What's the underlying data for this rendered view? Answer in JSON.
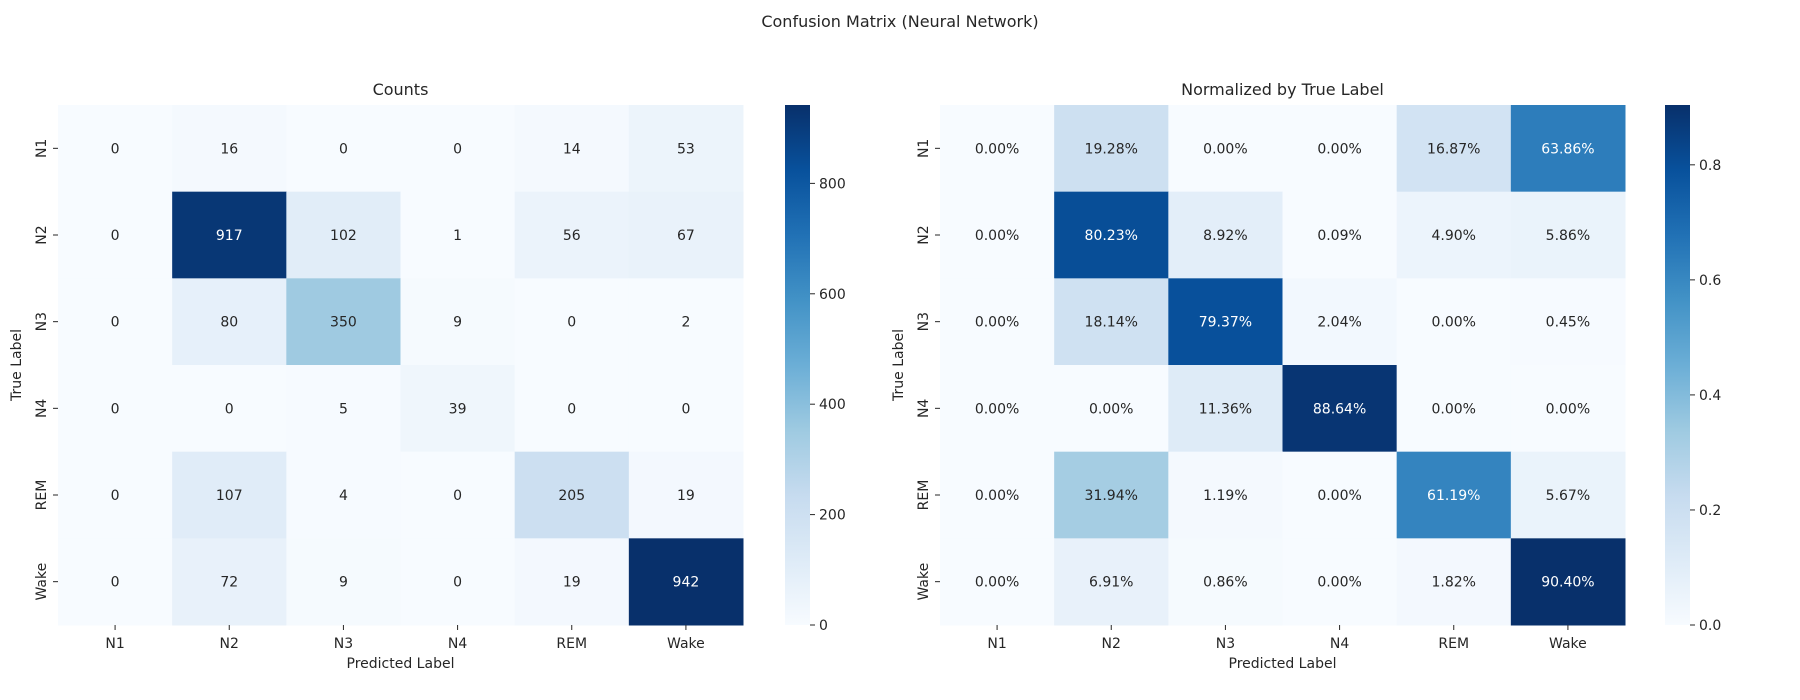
{
  "suptitle": "Confusion Matrix (Neural Network)",
  "chart_data": [
    {
      "type": "heatmap",
      "title": "Counts",
      "xlabel": "Predicted Label",
      "ylabel": "True Label",
      "x_categories": [
        "N1",
        "N2",
        "N3",
        "N4",
        "REM",
        "Wake"
      ],
      "y_categories": [
        "N1",
        "N2",
        "N3",
        "N4",
        "REM",
        "Wake"
      ],
      "values": [
        [
          0,
          16,
          0,
          0,
          14,
          53
        ],
        [
          0,
          917,
          102,
          1,
          56,
          67
        ],
        [
          0,
          80,
          350,
          9,
          0,
          2
        ],
        [
          0,
          0,
          5,
          39,
          0,
          0
        ],
        [
          0,
          107,
          4,
          0,
          205,
          19
        ],
        [
          0,
          72,
          9,
          0,
          19,
          942
        ]
      ],
      "cell_labels": [
        [
          "0",
          "16",
          "0",
          "0",
          "14",
          "53"
        ],
        [
          "0",
          "917",
          "102",
          "1",
          "56",
          "67"
        ],
        [
          "0",
          "80",
          "350",
          "9",
          "0",
          "2"
        ],
        [
          "0",
          "0",
          "5",
          "39",
          "0",
          "0"
        ],
        [
          "0",
          "107",
          "4",
          "0",
          "205",
          "19"
        ],
        [
          "0",
          "72",
          "9",
          "0",
          "19",
          "942"
        ]
      ],
      "vmin": 0,
      "vmax": 942,
      "colormap": "Blues",
      "colorbar_ticks": [
        0,
        200,
        400,
        600,
        800
      ],
      "colorbar_tick_labels": [
        "0",
        "200",
        "400",
        "600",
        "800"
      ]
    },
    {
      "type": "heatmap",
      "title": "Normalized by True Label",
      "xlabel": "Predicted Label",
      "ylabel": "True Label",
      "x_categories": [
        "N1",
        "N2",
        "N3",
        "N4",
        "REM",
        "Wake"
      ],
      "y_categories": [
        "N1",
        "N2",
        "N3",
        "N4",
        "REM",
        "Wake"
      ],
      "values": [
        [
          0.0,
          0.1928,
          0.0,
          0.0,
          0.1687,
          0.6386
        ],
        [
          0.0,
          0.8023,
          0.0892,
          0.0009,
          0.049,
          0.0586
        ],
        [
          0.0,
          0.1814,
          0.7937,
          0.0204,
          0.0,
          0.0045
        ],
        [
          0.0,
          0.0,
          0.1136,
          0.8864,
          0.0,
          0.0
        ],
        [
          0.0,
          0.3194,
          0.0119,
          0.0,
          0.6119,
          0.0567
        ],
        [
          0.0,
          0.0691,
          0.0086,
          0.0,
          0.0182,
          0.904
        ]
      ],
      "cell_labels": [
        [
          "0.00%",
          "19.28%",
          "0.00%",
          "0.00%",
          "16.87%",
          "63.86%"
        ],
        [
          "0.00%",
          "80.23%",
          "8.92%",
          "0.09%",
          "4.90%",
          "5.86%"
        ],
        [
          "0.00%",
          "18.14%",
          "79.37%",
          "2.04%",
          "0.00%",
          "0.45%"
        ],
        [
          "0.00%",
          "0.00%",
          "11.36%",
          "88.64%",
          "0.00%",
          "0.00%"
        ],
        [
          "0.00%",
          "31.94%",
          "1.19%",
          "0.00%",
          "61.19%",
          "5.67%"
        ],
        [
          "0.00%",
          "6.91%",
          "0.86%",
          "0.00%",
          "1.82%",
          "90.40%"
        ]
      ],
      "vmin": 0,
      "vmax": 0.904,
      "colormap": "Blues",
      "colorbar_ticks": [
        0,
        0.2,
        0.4,
        0.6,
        0.8
      ],
      "colorbar_tick_labels": [
        "0.0",
        "0.2",
        "0.4",
        "0.6",
        "0.8"
      ]
    }
  ]
}
